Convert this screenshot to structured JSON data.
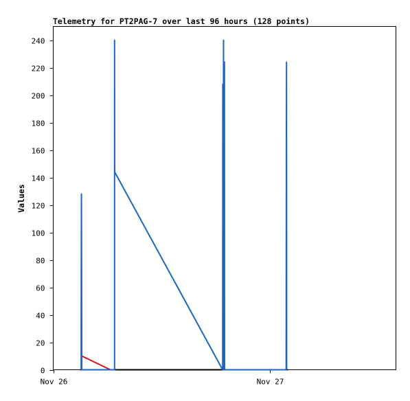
{
  "chart_data": {
    "type": "line",
    "title": "Telemetry for PT2PAG-7 over last 96 hours (128 points)",
    "xlabel": "",
    "ylabel": "Values",
    "ylim": [
      0,
      250
    ],
    "yticks": [
      0,
      20,
      40,
      60,
      80,
      100,
      120,
      140,
      160,
      180,
      200,
      220,
      240
    ],
    "xlim": [
      "2024-11-26T00:00",
      "2024-11-27T14:00"
    ],
    "xticks": [
      {
        "label": "Nov 26",
        "x": "2024-11-26T00:00"
      },
      {
        "label": "Nov 27",
        "x": "2024-11-27T00:00"
      }
    ],
    "grid": false,
    "legend": "none",
    "colors": {
      "series_blue": "#1a66c8",
      "series_red": "#e01010",
      "series_black": "#000000"
    },
    "series": [
      {
        "color": "#1a66c8",
        "points": [
          [
            "2024-11-26T03:06",
            0
          ],
          [
            "2024-11-26T03:06",
            32
          ],
          [
            "2024-11-26T03:07",
            96
          ],
          [
            "2024-11-26T03:08",
            128
          ],
          [
            "2024-11-26T03:09",
            64
          ],
          [
            "2024-11-26T03:10",
            0
          ],
          [
            "2024-11-26T06:48",
            0
          ],
          [
            "2024-11-26T06:48",
            240
          ],
          [
            "2024-11-26T06:49",
            144
          ],
          [
            "2024-11-26T18:47",
            0
          ],
          [
            "2024-11-26T18:48",
            208
          ],
          [
            "2024-11-26T18:49",
            176
          ],
          [
            "2024-11-26T18:50",
            0
          ],
          [
            "2024-11-26T18:51",
            176
          ],
          [
            "2024-11-26T18:52",
            112
          ],
          [
            "2024-11-26T18:53",
            240
          ],
          [
            "2024-11-26T18:54",
            0
          ],
          [
            "2024-11-26T18:55",
            48
          ],
          [
            "2024-11-26T18:56",
            200
          ],
          [
            "2024-11-26T18:57",
            192
          ],
          [
            "2024-11-26T18:58",
            224
          ],
          [
            "2024-11-26T18:59",
            224
          ],
          [
            "2024-11-26T19:00",
            0
          ],
          [
            "2024-11-27T01:50",
            0
          ],
          [
            "2024-11-27T01:51",
            176
          ],
          [
            "2024-11-27T01:52",
            224
          ],
          [
            "2024-11-27T01:53",
            0
          ]
        ]
      },
      {
        "color": "#e01010",
        "points": [
          [
            "2024-11-26T03:10",
            10
          ],
          [
            "2024-11-26T06:20",
            0
          ]
        ]
      },
      {
        "color": "#000000",
        "points": [
          [
            "2024-11-26T03:00",
            0
          ],
          [
            "2024-11-27T02:00",
            0
          ]
        ]
      }
    ]
  }
}
